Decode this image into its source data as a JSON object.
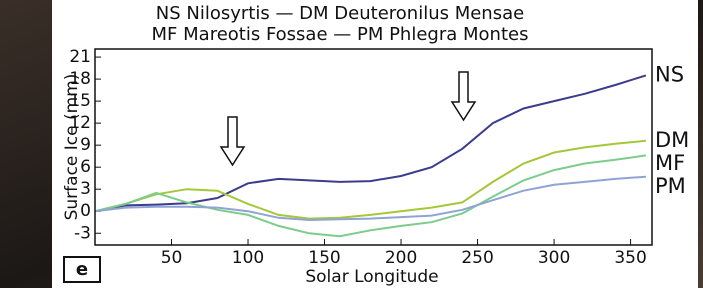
{
  "chart_data": {
    "type": "line",
    "title_lines": [
      "NS  Nilosyrtis  —  DM  Deuteronilus  Mensae",
      "MF  Mareotis  Fossae  —  PM  Phlegra  Montes"
    ],
    "panel_label": "e",
    "x_label": "Solar Longitude",
    "y_label": "Surface Ice (mm)",
    "x": [
      0,
      20,
      40,
      60,
      80,
      100,
      120,
      140,
      160,
      180,
      200,
      220,
      240,
      260,
      280,
      300,
      320,
      340,
      360
    ],
    "series": [
      {
        "name": "NS",
        "color": "#3c3c8c",
        "values": [
          0,
          0.8,
          0.9,
          1.1,
          1.8,
          3.8,
          4.4,
          4.2,
          4.0,
          4.1,
          4.8,
          6.0,
          8.5,
          12.0,
          14.0,
          15.0,
          16.0,
          17.2,
          18.5
        ]
      },
      {
        "name": "DM",
        "color": "#a6c73a",
        "values": [
          0,
          1.0,
          2.3,
          3.0,
          2.8,
          1.0,
          -0.5,
          -1.0,
          -0.9,
          -0.5,
          0,
          0.5,
          1.2,
          4.0,
          6.5,
          8.0,
          8.7,
          9.2,
          9.6
        ]
      },
      {
        "name": "MF",
        "color": "#7ccc8c",
        "values": [
          0,
          1.0,
          2.5,
          1.2,
          0.2,
          -0.5,
          -2.0,
          -3.0,
          -3.4,
          -2.6,
          -2.0,
          -1.5,
          -0.3,
          2.0,
          4.2,
          5.6,
          6.5,
          7.0,
          7.6
        ]
      },
      {
        "name": "PM",
        "color": "#8fa3d6",
        "values": [
          0,
          0.5,
          0.6,
          0.6,
          0.5,
          0,
          -0.9,
          -1.2,
          -1.1,
          -1.0,
          -0.8,
          -0.6,
          0.2,
          1.5,
          2.8,
          3.6,
          4.0,
          4.4,
          4.7
        ]
      }
    ],
    "xlim": [
      0,
      364
    ],
    "ylim": [
      -4.6,
      22.1
    ],
    "xticks": [
      50,
      100,
      150,
      200,
      250,
      300,
      350
    ],
    "yticks": [
      -3,
      0,
      3,
      6,
      9,
      12,
      15,
      18,
      21
    ]
  }
}
